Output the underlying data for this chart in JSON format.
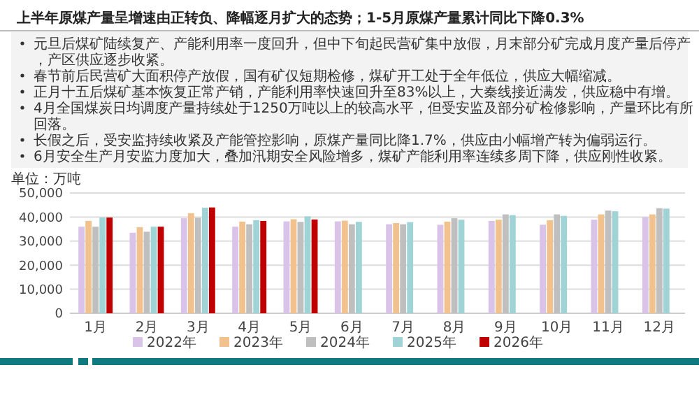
{
  "chart_data": {
    "type": "bar",
    "title": "上半年原煤产量呈增速由正转负、降幅逐月扩大的态势；1-5月原煤产量累计同比下降0.3%",
    "ylabel": "单位：万吨",
    "annotations": [
      "元旦后煤矿陆续复产、产能利用率一度回升，但中下旬起民营矿集中放假，月末部分矿完成月度产量后停产，产区供应逐步收紧。",
      "春节前后民营矿大面积停产放假，国有矿仅短期检修，煤矿开工处于全年低位，供应大幅缩减。",
      "正月十五后煤矿基本恢复正常产销，产能利用率快速回升至83%以上，大秦线接近满发，供应稳中有增。",
      "4月全国煤炭日均调度产量持续处于1250万吨以上的较高水平，但受安监及部分矿检修影响，产量环比有所回落。",
      "长假之后，受安监持续收紧及产能管控影响，原煤产量同比降1.7%，供应由小幅增产转为偏弱运行。",
      "6月安全生产月安监力度加大，叠加汛期安全风险增多，煤矿产能利用率连续多周下降，供应刚性收紧。"
    ],
    "categories": [
      "1月",
      "2月",
      "3月",
      "4月",
      "5月",
      "6月",
      "7月",
      "8月",
      "9月",
      "10月",
      "11月",
      "12月"
    ],
    "series": [
      {
        "name": "2022年",
        "color": "#d9c3e9",
        "values": [
          36000,
          33500,
          39500,
          36000,
          38200,
          38200,
          37000,
          36800,
          38400,
          36800,
          38900,
          40000
        ]
      },
      {
        "name": "2023年",
        "color": "#f2c28e",
        "values": [
          38400,
          35800,
          41600,
          38100,
          39100,
          38500,
          37500,
          38100,
          38900,
          38700,
          41100,
          41100
        ]
      },
      {
        "name": "2024年",
        "color": "#bfbfbf",
        "values": [
          36000,
          33900,
          39700,
          37000,
          38000,
          37000,
          37000,
          39500,
          41100,
          41100,
          42700,
          43700
        ]
      },
      {
        "name": "2025年",
        "color": "#9fd3d6",
        "values": [
          39800,
          36000,
          43900,
          38700,
          40300,
          38000,
          37900,
          38900,
          40800,
          40500,
          42400,
          43500
        ]
      },
      {
        "name": "2026年",
        "color": "#c00000",
        "values": [
          39800,
          36000,
          44000,
          38400,
          39000,
          null,
          null,
          null,
          null,
          null,
          null,
          null
        ]
      }
    ],
    "ylim": [
      0,
      50000
    ],
    "yticks": [
      {
        "value": 0,
        "label": "0"
      },
      {
        "value": 10000,
        "label": "10,000"
      },
      {
        "value": 20000,
        "label": "20,000"
      },
      {
        "value": 30000,
        "label": "30,000"
      },
      {
        "value": 40000,
        "label": "40,000"
      },
      {
        "value": 50000,
        "label": "50,000"
      }
    ],
    "grid": "y",
    "legend": "bottom"
  }
}
